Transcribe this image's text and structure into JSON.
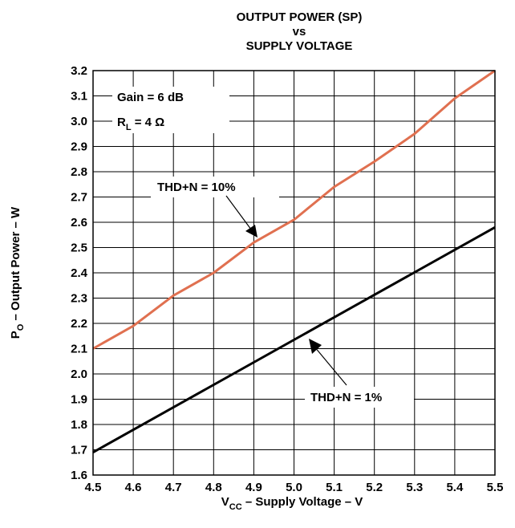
{
  "chart_data": {
    "type": "line",
    "title": [
      "OUTPUT POWER (SP)",
      "vs",
      "SUPPLY VOLTAGE"
    ],
    "xlabel": {
      "main": "V",
      "sub": "CC",
      "rest": " – Supply Voltage – V"
    },
    "ylabel": {
      "main": "P",
      "sub": "O",
      "rest": " – Output Power – W"
    },
    "xlim": [
      4.5,
      5.5
    ],
    "ylim": [
      1.6,
      3.2
    ],
    "xticks": [
      "4.5",
      "4.6",
      "4.7",
      "4.8",
      "4.9",
      "5.0",
      "5.1",
      "5.2",
      "5.3",
      "5.4",
      "5.5"
    ],
    "yticks": [
      "1.6",
      "1.7",
      "1.8",
      "1.9",
      "2.0",
      "2.1",
      "2.2",
      "2.3",
      "2.4",
      "2.5",
      "2.6",
      "2.7",
      "2.8",
      "2.9",
      "3.0",
      "3.1",
      "3.2"
    ],
    "grid": true,
    "annotations": {
      "gain": "Gain = 6 dB",
      "rl": {
        "main": "R",
        "sub": "L",
        "rest": " = 4 Ω"
      }
    },
    "series": [
      {
        "name": "THD+N = 10%",
        "color": "#e07050",
        "x": [
          4.5,
          4.6,
          4.7,
          4.8,
          4.9,
          5.0,
          5.1,
          5.2,
          5.3,
          5.4,
          5.5
        ],
        "y": [
          2.1,
          2.19,
          2.31,
          2.4,
          2.52,
          2.61,
          2.74,
          2.84,
          2.95,
          3.09,
          3.2
        ]
      },
      {
        "name": "THD+N = 1%",
        "color": "#000000",
        "x": [
          4.5,
          5.5
        ],
        "y": [
          1.69,
          2.58
        ]
      }
    ]
  }
}
